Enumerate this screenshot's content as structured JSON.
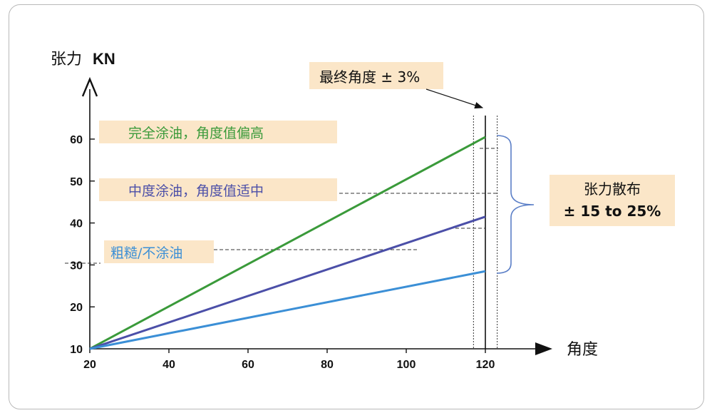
{
  "chart_data": {
    "type": "line",
    "title": "",
    "ylabel": "张力",
    "ylabel_unit": "KN",
    "xlabel": "角度",
    "xlim": [
      20,
      130
    ],
    "ylim": [
      10,
      70
    ],
    "x_ticks": [
      20,
      40,
      60,
      80,
      100,
      120
    ],
    "y_ticks": [
      10,
      20,
      30,
      40,
      50,
      60
    ],
    "grid": false,
    "series": [
      {
        "name": "完全涂油，角度值偏高",
        "color": "#3a9a3a",
        "x": [
          20,
          120
        ],
        "y": [
          10,
          60.5
        ]
      },
      {
        "name": "中度涂油，角度值适中",
        "color": "#4b4fa8",
        "x": [
          20,
          120
        ],
        "y": [
          10,
          41.5
        ]
      },
      {
        "name": "粗糙/不涂油",
        "color": "#3b8fd6",
        "x": [
          20,
          120
        ],
        "y": [
          10,
          28.5
        ]
      }
    ],
    "reference_lines": {
      "vertical_solid": 120,
      "vertical_dotted": [
        117,
        123
      ]
    },
    "annotations": {
      "final_angle": "最终角度 ± 3%",
      "tension_spread_title": "张力散布",
      "tension_spread_value": "± 15 to 25%"
    }
  }
}
